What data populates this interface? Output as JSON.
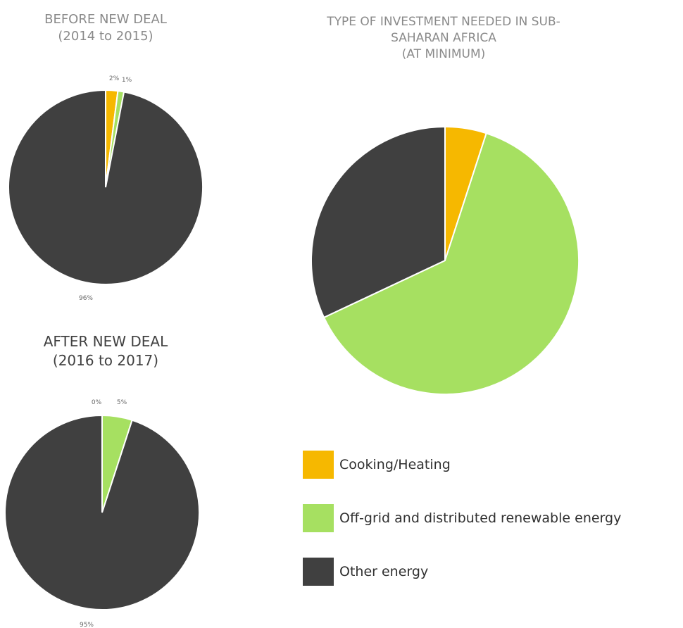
{
  "colors": {
    "cooking": "#F6B800",
    "offgrid": "#A6E061",
    "other": "#404040"
  },
  "chart_data": [
    {
      "type": "pie",
      "title_lines": [
        "BEFORE NEW DEAL",
        "(2014 to 2015)"
      ],
      "categories": [
        "Cooking/Heating",
        "Off-grid and distributed renewable energy",
        "Other energy"
      ],
      "values": [
        2,
        1,
        96
      ],
      "labels": [
        "2%",
        "1%",
        "96%"
      ]
    },
    {
      "type": "pie",
      "title_lines": [
        "AFTER NEW DEAL",
        "(2016 to 2017)"
      ],
      "categories": [
        "Cooking/Heating",
        "Off-grid and distributed renewable energy",
        "Other energy"
      ],
      "values": [
        0,
        5,
        95
      ],
      "labels": [
        "0%",
        "5%",
        "95%"
      ]
    },
    {
      "type": "pie",
      "title_lines": [
        "TYPE OF INVESTMENT NEEDED IN SUB-",
        "SAHARAN AFRICA",
        "(AT MINIMUM)"
      ],
      "categories": [
        "Cooking/Heating",
        "Off-grid and distributed renewable energy",
        "Other energy"
      ],
      "values": [
        5,
        63,
        32
      ],
      "labels": []
    }
  ],
  "legend": [
    {
      "label": "Cooking/Heating",
      "color": "#F6B800"
    },
    {
      "label": "Off-grid and distributed renewable energy",
      "color": "#A6E061"
    },
    {
      "label": "Other energy",
      "color": "#404040"
    }
  ]
}
